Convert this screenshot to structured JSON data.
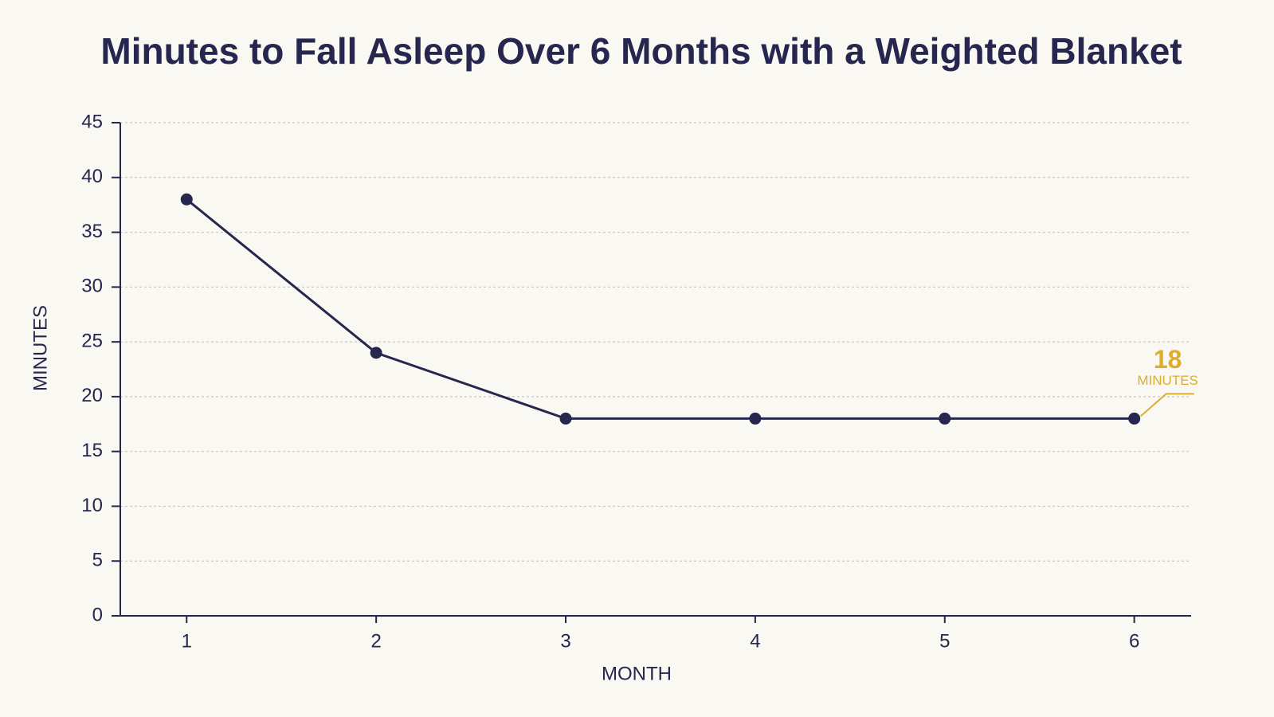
{
  "chart_data": {
    "type": "line",
    "title": "Minutes to Fall Asleep Over 6 Months with a Weighted Blanket",
    "x_label": "MONTH",
    "y_label": "MINUTES",
    "x": [
      1,
      2,
      3,
      4,
      5,
      6
    ],
    "series": [
      {
        "name": "Minutes",
        "color": "#26264f",
        "values": [
          38,
          24,
          18,
          18,
          18,
          18
        ],
        "value_labels": [
          null,
          null,
          null,
          null,
          null,
          "18"
        ]
      }
    ],
    "value_label_unit": "MINUTES",
    "annotation_color": "#dcae2c",
    "xlim": [
      0.65,
      6.3
    ],
    "xticks": [
      1,
      2,
      3,
      4,
      5,
      6
    ],
    "ylim": [
      0,
      45
    ],
    "yticks": [
      0,
      5,
      10,
      15,
      20,
      25,
      30,
      35,
      40,
      45
    ],
    "grid": true
  }
}
